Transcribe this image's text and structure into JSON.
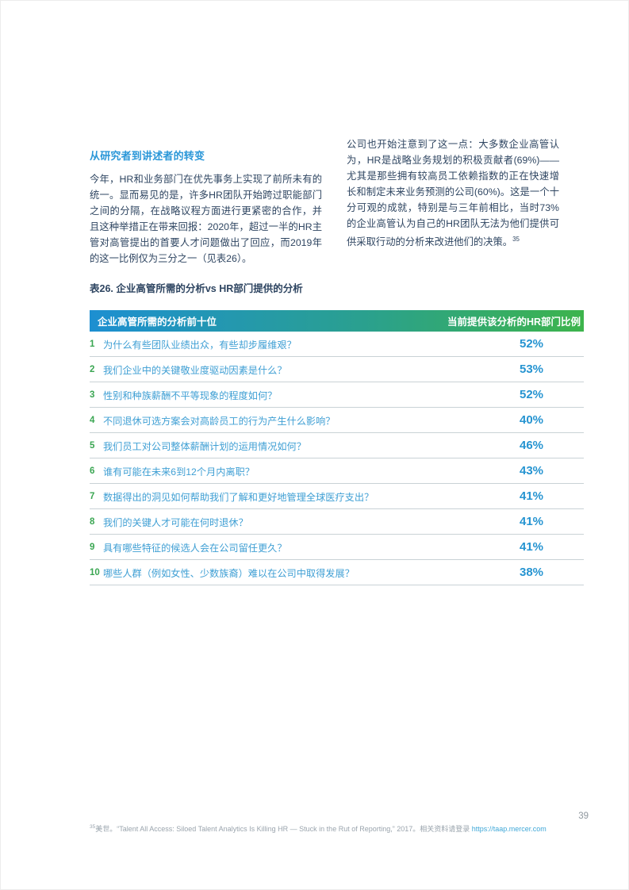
{
  "article": {
    "left_heading": "从研究者到讲述者的转变",
    "left_paragraph": "今年，HR和业务部门在优先事务上实现了前所未有的统一。显而易见的是，许多HR团队开始跨过职能部门之间的分隔，在战略议程方面进行更紧密的合作，并且这种举措正在带来回报：2020年，超过一半的HR主管对高管提出的首要人才问题做出了回应，而2019年的这一比例仅为三分之一（见表26）。",
    "right_paragraph": "公司也开始注意到了这一点：大多数企业高管认为，HR是战略业务规划的积极贡献者(69%)——尤其是那些拥有较高员工依赖指数的正在快速增长和制定未来业务预测的公司(60%)。这是一个十分可观的成就，特别是与三年前相比，当时73%的企业高管认为自己的HR团队无法为他们提供可供采取行动的分析来改进他们的决策。",
    "footnote_ref": "35"
  },
  "chart_data": {
    "type": "table",
    "title": "表26. 企业高管所需的分析vs HR部门提供的分析",
    "columns": [
      "企业高管所需的分析前十位",
      "当前提供该分析的HR部门比例"
    ],
    "categories": [
      "为什么有些团队业绩出众，有些却步履维艰？",
      "我们企业中的关键敬业度驱动因素是什么？",
      "性别和种族薪酬不平等现象的程度如何？",
      "不同退休可选方案会对高龄员工的行为产生什么影响？",
      "我们员工对公司整体薪酬计划的运用情况如何？",
      "谁有可能在未来6到12个月内离职？",
      "数据得出的洞见如何帮助我们了解和更好地管理全球医疗支出？",
      "我们的关键人才可能在何时退休？",
      "具有哪些特征的候选人会在公司留任更久？",
      "哪些人群（例如女性、少数族裔）难以在公司中取得发展？"
    ],
    "values": [
      52,
      53,
      52,
      40,
      46,
      43,
      41,
      41,
      41,
      38
    ]
  },
  "table": {
    "title": "表26. 企业高管所需的分析vs HR部门提供的分析",
    "header_left": "企业高管所需的分析前十位",
    "header_right": "当前提供该分析的HR部门比例",
    "rows": [
      {
        "rank": "1",
        "question": "为什么有些团队业绩出众，有些却步履维艰？",
        "value": "52%"
      },
      {
        "rank": "2",
        "question": "我们企业中的关键敬业度驱动因素是什么？",
        "value": "53%"
      },
      {
        "rank": "3",
        "question": "性别和种族薪酬不平等现象的程度如何？",
        "value": "52%"
      },
      {
        "rank": "4",
        "question": "不同退休可选方案会对高龄员工的行为产生什么影响？",
        "value": "40%"
      },
      {
        "rank": "5",
        "question": "我们员工对公司整体薪酬计划的运用情况如何？",
        "value": "46%"
      },
      {
        "rank": "6",
        "question": "谁有可能在未来6到12个月内离职？",
        "value": "43%"
      },
      {
        "rank": "7",
        "question": "数据得出的洞见如何帮助我们了解和更好地管理全球医疗支出？",
        "value": "41%"
      },
      {
        "rank": "8",
        "question": "我们的关键人才可能在何时退休？",
        "value": "41%"
      },
      {
        "rank": "9",
        "question": "具有哪些特征的候选人会在公司留任更久？",
        "value": "41%"
      },
      {
        "rank": "10",
        "question": "哪些人群（例如女性、少数族裔）难以在公司中取得发展？",
        "value": "38%"
      }
    ]
  },
  "footnote": {
    "ref": "35",
    "text": "美世。“Talent All Access: Siloed Talent Analytics Is Killing HR — Stuck in the Rut of Reporting,” 2017。相关资料请登录 ",
    "link": "https://taap.mercer.com"
  },
  "page": {
    "number": "39"
  },
  "colors": {
    "accent_blue": "#2b97d8",
    "accent_green": "#3db44c",
    "header_gradient_start": "#1d8fd1",
    "header_gradient_end": "#3db44c",
    "body_navy": "#2e4561",
    "percent_blue": "#2694d1",
    "rank_green": "#3aa652"
  }
}
